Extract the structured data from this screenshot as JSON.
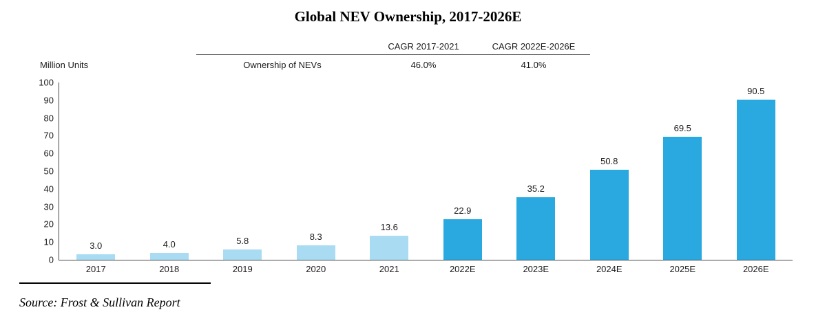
{
  "title": "Global NEV Ownership, 2017-2026E",
  "axis_label": "Million Units",
  "header_table": {
    "cagr_col1": "CAGR 2017-2021",
    "cagr_col2": "CAGR 2022E-2026E",
    "row_label": "Ownership of NEVs",
    "cagr_val1": "46.0%",
    "cagr_val2": "41.0%"
  },
  "source": "Source: Frost & Sullivan Report",
  "colors": {
    "historical_bar": "#A9DCF3",
    "estimate_bar": "#29A9E0"
  },
  "chart_data": {
    "type": "bar",
    "title": "Global NEV Ownership, 2017-2026E",
    "categories": [
      "2017",
      "2018",
      "2019",
      "2020",
      "2021",
      "2022E",
      "2023E",
      "2024E",
      "2025E",
      "2026E"
    ],
    "values": [
      3.0,
      4.0,
      5.8,
      8.3,
      13.6,
      22.9,
      35.2,
      50.8,
      69.5,
      90.5
    ],
    "value_labels": [
      "3.0",
      "4.0",
      "5.8",
      "8.3",
      "13.6",
      "22.9",
      "35.2",
      "50.8",
      "69.5",
      "90.5"
    ],
    "historical_count": 5,
    "xlabel": "",
    "ylabel": "Million Units",
    "ylim": [
      0,
      100
    ],
    "yticks": [
      0,
      10,
      20,
      30,
      40,
      50,
      60,
      70,
      80,
      90,
      100
    ],
    "grid": false,
    "legend": "none"
  }
}
